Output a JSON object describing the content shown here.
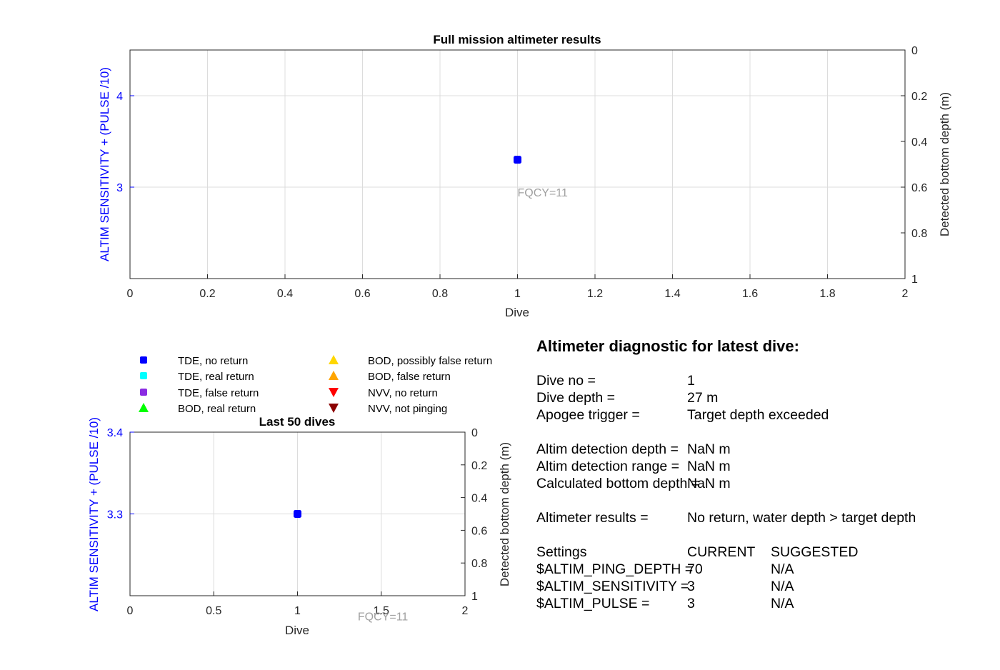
{
  "chart_data": [
    {
      "type": "scatter",
      "title": "Full mission altimeter results",
      "xlabel": "Dive",
      "ylabel_left": "ALTIM SENSITIVITY + (PULSE /10)",
      "ylabel_right": "Detected bottom depth (m)",
      "xlim": [
        0,
        2
      ],
      "ylim_left": [
        2,
        4.5
      ],
      "ylim_right": [
        0,
        1
      ],
      "right_axis_reversed": true,
      "grid": true,
      "x_ticks": [
        "0",
        "0.2",
        "0.4",
        "0.6",
        "0.8",
        "1",
        "1.2",
        "1.4",
        "1.6",
        "1.8",
        "2"
      ],
      "y_ticks_left": [
        "3",
        "4"
      ],
      "y_ticks_right": [
        "0",
        "0.2",
        "0.4",
        "0.6",
        "0.8",
        "1"
      ],
      "series": [
        {
          "name": "TDE, no return",
          "color": "#0000ff",
          "marker": "square",
          "points": [
            {
              "x": 1,
              "y": 3.3
            }
          ]
        }
      ],
      "annotations": [
        {
          "text": "FQCY=11",
          "x": 1,
          "y": 2.9
        }
      ]
    },
    {
      "type": "scatter",
      "title": "Last 50 dives",
      "xlabel": "Dive",
      "ylabel_left": "ALTIM SENSITIVITY + (PULSE /10)",
      "ylabel_right": "Detected bottom depth (m)",
      "xlim": [
        0,
        2
      ],
      "ylim_left": [
        3.2,
        3.4
      ],
      "ylim_right": [
        0,
        1
      ],
      "right_axis_reversed": true,
      "grid": true,
      "x_ticks": [
        "0",
        "0.5",
        "1",
        "1.5",
        "2"
      ],
      "y_ticks_left": [
        "3.3",
        "3.4"
      ],
      "y_ticks_right": [
        "0",
        "0.2",
        "0.4",
        "0.6",
        "0.8",
        "1"
      ],
      "series": [
        {
          "name": "TDE, no return",
          "color": "#0000ff",
          "marker": "square",
          "points": [
            {
              "x": 1,
              "y": 3.3
            }
          ]
        }
      ],
      "annotations": [
        {
          "text": "FQCY=11",
          "x": 1.36,
          "y": 3.17
        }
      ]
    }
  ],
  "legend": {
    "placement": "above bottom-left plot",
    "items": [
      {
        "label": "TDE, no return",
        "color": "#0000ff",
        "marker": "square"
      },
      {
        "label": "TDE, real return",
        "color": "#00ffff",
        "marker": "square"
      },
      {
        "label": "TDE, false return",
        "color": "#8a2be2",
        "marker": "square"
      },
      {
        "label": "BOD, real return",
        "color": "#00ff00",
        "marker": "triangle-up"
      },
      {
        "label": "BOD, possibly false return",
        "color": "#ffd700",
        "marker": "triangle-up"
      },
      {
        "label": "BOD, false return",
        "color": "#ffa500",
        "marker": "triangle-up"
      },
      {
        "label": "NVV, no return",
        "color": "#ff0000",
        "marker": "triangle-down"
      },
      {
        "label": "NVV, not pinging",
        "color": "#8b0000",
        "marker": "triangle-down"
      }
    ]
  },
  "diagnostic": {
    "title": "Altimeter diagnostic for latest dive:",
    "rows": [
      {
        "label": "Dive no =",
        "value": "1"
      },
      {
        "label": "Dive depth =",
        "value": "27 m"
      },
      {
        "label": "Apogee trigger =",
        "value": "Target depth exceeded"
      },
      {
        "label": "Altim detection depth =",
        "value": "NaN m"
      },
      {
        "label": "Altim detection range =",
        "value": "NaN m"
      },
      {
        "label": "Calculated bottom depth =",
        "value": "NaN m"
      },
      {
        "label": "Altimeter results =",
        "value": "No return, water depth > target depth"
      }
    ],
    "settings_header": {
      "label": "Settings",
      "current": "CURRENT",
      "suggested": "SUGGESTED"
    },
    "settings": [
      {
        "label": "$ALTIM_PING_DEPTH =",
        "current": "70",
        "suggested": "N/A"
      },
      {
        "label": "$ALTIM_SENSITIVITY =",
        "current": "3",
        "suggested": "N/A"
      },
      {
        "label": "$ALTIM_PULSE =",
        "current": "3",
        "suggested": "N/A"
      }
    ]
  }
}
